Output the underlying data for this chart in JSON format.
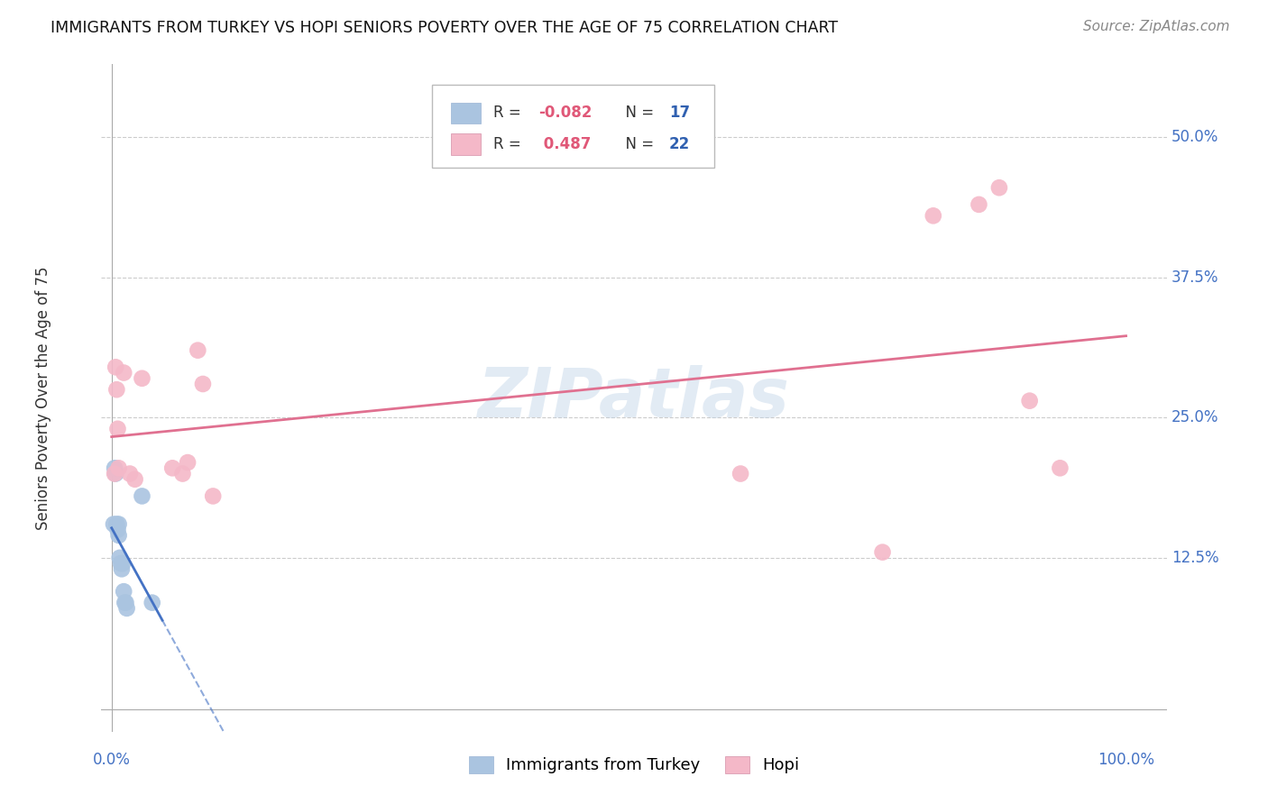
{
  "title": "IMMIGRANTS FROM TURKEY VS HOPI SENIORS POVERTY OVER THE AGE OF 75 CORRELATION CHART",
  "source": "Source: ZipAtlas.com",
  "ylabel": "Seniors Poverty Over the Age of 75",
  "color_blue": "#aac4e0",
  "color_blue_line": "#4472c4",
  "color_pink": "#f4b8c8",
  "color_pink_line": "#e07090",
  "watermark": "ZIPatlas",
  "ytick_positions": [
    0.125,
    0.25,
    0.375,
    0.5
  ],
  "ytick_labels": [
    "12.5%",
    "25.0%",
    "37.5%",
    "50.0%"
  ],
  "turkey_x": [
    0.002,
    0.003,
    0.004,
    0.005,
    0.006,
    0.007,
    0.007,
    0.008,
    0.009,
    0.01,
    0.011,
    0.012,
    0.013,
    0.014,
    0.015,
    0.03,
    0.04
  ],
  "turkey_y": [
    0.155,
    0.205,
    0.2,
    0.155,
    0.15,
    0.145,
    0.155,
    0.125,
    0.12,
    0.115,
    0.12,
    0.095,
    0.085,
    0.085,
    0.08,
    0.18,
    0.085
  ],
  "hopi_x": [
    0.003,
    0.004,
    0.005,
    0.006,
    0.007,
    0.012,
    0.018,
    0.023,
    0.03,
    0.06,
    0.07,
    0.075,
    0.085,
    0.09,
    0.1,
    0.62,
    0.76,
    0.81,
    0.855,
    0.875,
    0.905,
    0.935
  ],
  "hopi_y": [
    0.2,
    0.295,
    0.275,
    0.24,
    0.205,
    0.29,
    0.2,
    0.195,
    0.285,
    0.205,
    0.2,
    0.21,
    0.31,
    0.28,
    0.18,
    0.2,
    0.13,
    0.43,
    0.44,
    0.455,
    0.265,
    0.205
  ],
  "turkey_line_x0": 0.0,
  "turkey_line_x_solid_end": 0.05,
  "turkey_line_x1": 1.0,
  "hopi_line_x0": 0.0,
  "hopi_line_x1": 1.0,
  "xlim": [
    0.0,
    1.0
  ],
  "ylim": [
    -0.03,
    0.565
  ]
}
